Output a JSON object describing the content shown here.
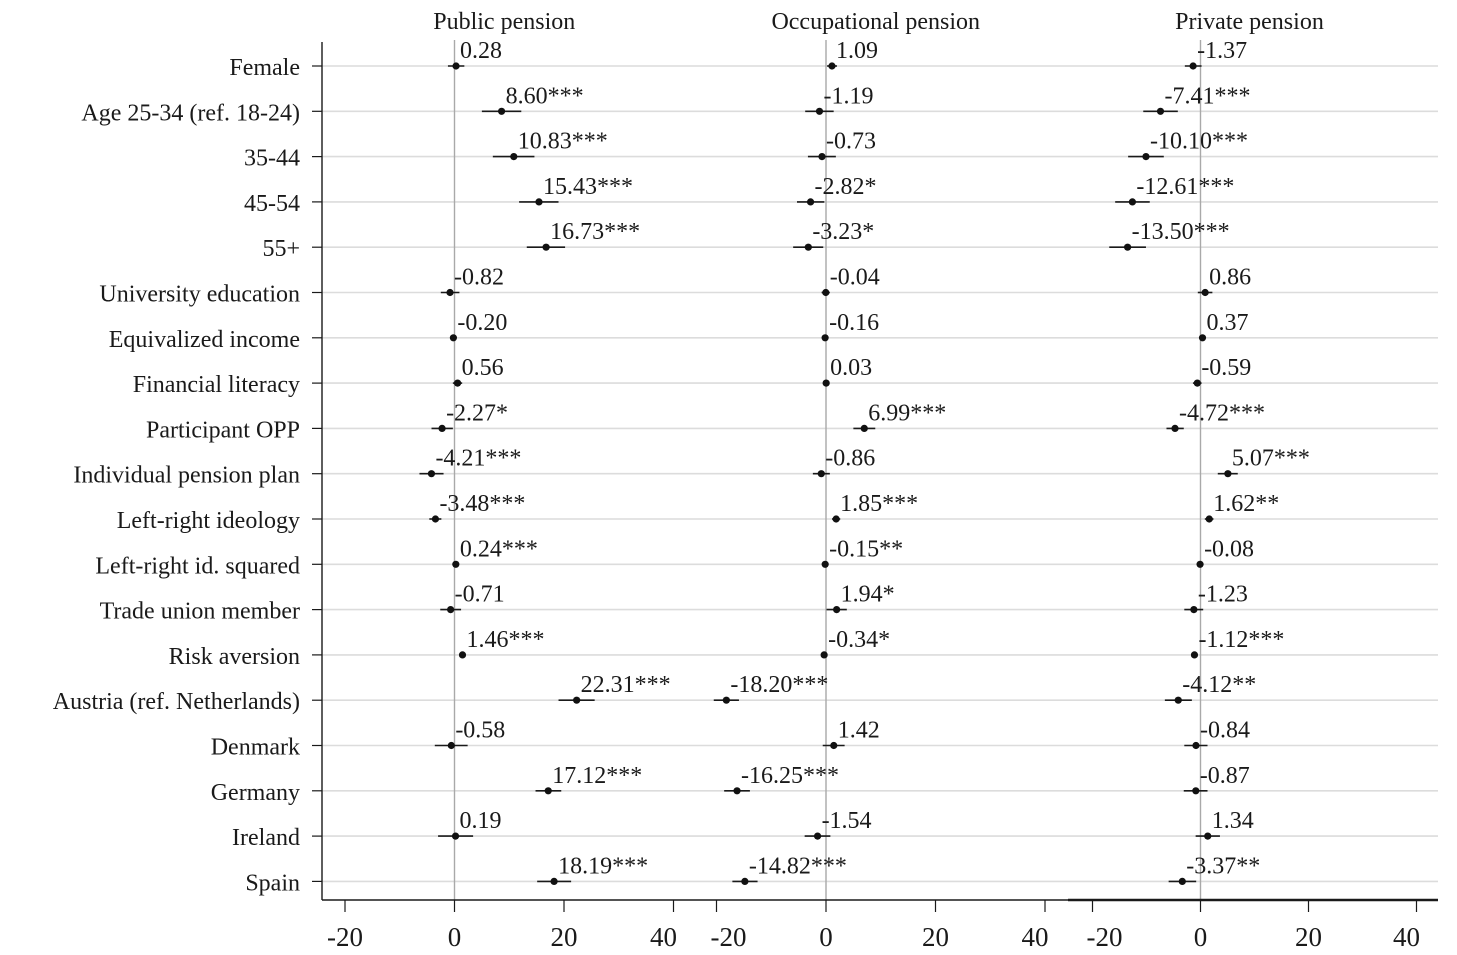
{
  "chart_data": {
    "type": "scatter",
    "subtype": "coefficient-plot",
    "rows": [
      "Female",
      "Age 25-34 (ref. 18-24)",
      "35-44",
      "45-54",
      "55+",
      "University education",
      "Equivalized income",
      "Financial literacy",
      "Participant OPP",
      "Individual pension plan",
      "Left-right ideology",
      "Left-right id. squared",
      "Trade union member",
      "Risk aversion",
      "Austria (ref. Netherlands)",
      "Denmark",
      "Germany",
      "Ireland",
      "Spain"
    ],
    "xlim": [
      -22,
      44
    ],
    "xticks": [
      "-20",
      "0",
      "20",
      "40"
    ],
    "grid": true,
    "panels": [
      {
        "title": "Public pension",
        "values": [
          0.28,
          8.6,
          10.83,
          15.43,
          16.73,
          -0.82,
          -0.2,
          0.56,
          -2.27,
          -4.21,
          -3.48,
          0.24,
          -0.71,
          1.46,
          22.31,
          -0.58,
          17.12,
          0.19,
          18.19
        ],
        "labels": [
          "0.28",
          "8.60***",
          "10.83***",
          "15.43***",
          "16.73***",
          "-0.82",
          "-0.20",
          "0.56",
          "-2.27*",
          "-4.21***",
          "-3.48***",
          "0.24***",
          "-0.71",
          "1.46***",
          "22.31***",
          "-0.58",
          "17.12***",
          "0.19",
          "18.19***"
        ],
        "ci": [
          [
            -1.2,
            1.8
          ],
          [
            5.0,
            12.2
          ],
          [
            7.0,
            14.6
          ],
          [
            11.8,
            19.0
          ],
          [
            13.2,
            20.2
          ],
          [
            -2.5,
            0.9
          ],
          [
            -0.5,
            0.1
          ],
          [
            -0.3,
            1.4
          ],
          [
            -4.2,
            -0.3
          ],
          [
            -6.4,
            -2.0
          ],
          [
            -4.6,
            -2.4
          ],
          [
            0.1,
            0.4
          ],
          [
            -2.6,
            1.2
          ],
          [
            0.9,
            2.0
          ],
          [
            19.0,
            25.6
          ],
          [
            -3.6,
            2.4
          ],
          [
            14.8,
            19.5
          ],
          [
            -3.0,
            3.4
          ],
          [
            15.1,
            21.3
          ]
        ]
      },
      {
        "title": "Occupational pension",
        "values": [
          1.09,
          -1.19,
          -0.73,
          -2.82,
          -3.23,
          -0.04,
          -0.16,
          0.03,
          6.99,
          -0.86,
          1.85,
          -0.15,
          1.94,
          -0.34,
          -18.2,
          1.42,
          -16.25,
          -1.54,
          -14.82
        ],
        "labels": [
          "1.09",
          "-1.19",
          "-0.73",
          "-2.82*",
          "-3.23*",
          "-0.04",
          "-0.16",
          "0.03",
          "6.99***",
          "-0.86",
          "1.85***",
          "-0.15**",
          "1.94*",
          "-0.34*",
          "-18.20***",
          "1.42",
          "-16.25***",
          "-1.54",
          "-14.82***"
        ],
        "ci": [
          [
            0.2,
            2.0
          ],
          [
            -3.8,
            1.4
          ],
          [
            -3.3,
            1.8
          ],
          [
            -5.3,
            -0.3
          ],
          [
            -6.0,
            -0.5
          ],
          [
            -0.8,
            0.7
          ],
          [
            -0.4,
            0.1
          ],
          [
            -0.3,
            0.3
          ],
          [
            5.0,
            9.0
          ],
          [
            -2.4,
            0.7
          ],
          [
            1.1,
            2.6
          ],
          [
            -0.3,
            -0.0
          ],
          [
            0.1,
            3.8
          ],
          [
            -0.6,
            -0.1
          ],
          [
            -20.5,
            -15.9
          ],
          [
            -0.6,
            3.4
          ],
          [
            -18.6,
            -13.9
          ],
          [
            -3.9,
            0.8
          ],
          [
            -17.1,
            -12.5
          ]
        ]
      },
      {
        "title": "Private pension",
        "values": [
          -1.37,
          -7.41,
          -10.1,
          -12.61,
          -13.5,
          0.86,
          0.37,
          -0.59,
          -4.72,
          5.07,
          1.62,
          -0.08,
          -1.23,
          -1.12,
          -4.12,
          -0.84,
          -0.87,
          1.34,
          -3.37
        ],
        "labels": [
          "-1.37",
          "-7.41***",
          "-10.10***",
          "-12.61***",
          "-13.50***",
          "0.86",
          "0.37",
          "-0.59",
          "-4.72***",
          "5.07***",
          "1.62**",
          "-0.08",
          "-1.23",
          "-1.12***",
          "-4.12**",
          "-0.84",
          "-0.87",
          "1.34",
          "-3.37**"
        ],
        "ci": [
          [
            -2.9,
            0.2
          ],
          [
            -10.6,
            -4.2
          ],
          [
            -13.4,
            -6.8
          ],
          [
            -15.8,
            -9.4
          ],
          [
            -16.9,
            -10.1
          ],
          [
            -0.5,
            2.2
          ],
          [
            0.0,
            0.7
          ],
          [
            -1.4,
            0.2
          ],
          [
            -6.3,
            -3.1
          ],
          [
            3.2,
            6.9
          ],
          [
            0.8,
            2.4
          ],
          [
            -0.2,
            0.0
          ],
          [
            -3.0,
            0.5
          ],
          [
            -1.4,
            -0.8
          ],
          [
            -6.6,
            -1.6
          ],
          [
            -3.0,
            1.3
          ],
          [
            -3.1,
            1.3
          ],
          [
            -0.9,
            3.6
          ],
          [
            -5.9,
            -0.8
          ]
        ]
      }
    ]
  }
}
